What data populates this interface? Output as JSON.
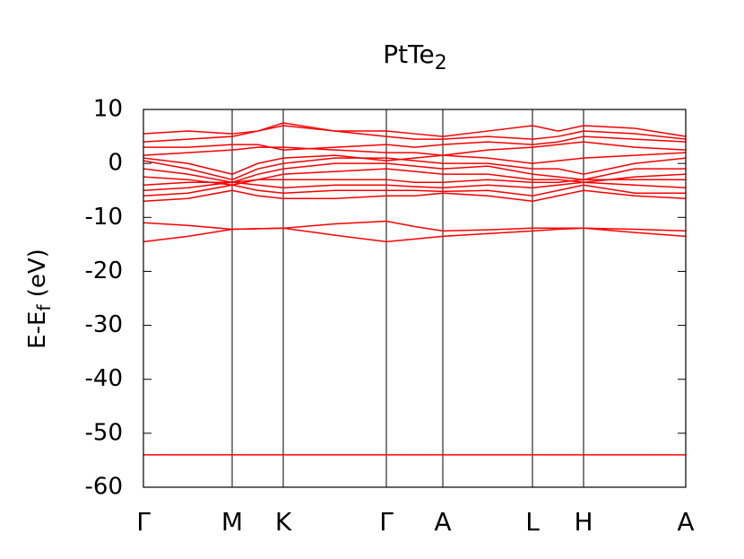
{
  "chart_data": {
    "type": "line",
    "title": [
      "PtTe",
      "2"
    ],
    "ylabel": [
      "E-E",
      "f",
      " (eV)"
    ],
    "xlim": [
      0,
      6.05
    ],
    "xticks": [
      {
        "value": 0,
        "label": "Γ"
      },
      {
        "value": 0.99,
        "label": "M"
      },
      {
        "value": 1.56,
        "label": "K"
      },
      {
        "value": 2.71,
        "label": "Γ"
      },
      {
        "value": 3.34,
        "label": "A"
      },
      {
        "value": 4.34,
        "label": "L"
      },
      {
        "value": 4.91,
        "label": "H"
      },
      {
        "value": 6.05,
        "label": "A"
      }
    ],
    "ylim": [
      -60,
      10
    ],
    "yticks": [
      -60,
      -50,
      -40,
      -30,
      -20,
      -10,
      0,
      10
    ],
    "grid_x": true,
    "x": [
      0,
      0.495,
      0.99,
      1.275,
      1.56,
      2.135,
      2.71,
      3.025,
      3.34,
      3.84,
      4.34,
      4.625,
      4.91,
      5.48,
      6.05
    ],
    "series": [
      {
        "color": "#ff0000",
        "values": [
          -54,
          -54,
          -54,
          -54,
          -54,
          -54,
          -54,
          -54,
          -54,
          -54,
          -54,
          -54,
          -54,
          -54,
          -54
        ]
      },
      {
        "color": "#ff0000",
        "values": [
          -14.5,
          -13.5,
          -12.2,
          -12.1,
          -12,
          -13.3,
          -14.5,
          -14,
          -13.5,
          -13,
          -12.5,
          -12.2,
          -12,
          -12.8,
          -13.5
        ]
      },
      {
        "color": "#ff0000",
        "values": [
          -11,
          -11.5,
          -12.2,
          -12.1,
          -12,
          -11.2,
          -10.7,
          -11.7,
          -12.5,
          -12.3,
          -12,
          -12,
          -12,
          -12.2,
          -12.5
        ]
      },
      {
        "color": "#ff0000",
        "values": [
          -7,
          -6.5,
          -5,
          -6,
          -6.5,
          -6.5,
          -6,
          -6,
          -5.5,
          -6,
          -7,
          -6,
          -5,
          -6,
          -6.5
        ]
      },
      {
        "color": "#ff0000",
        "values": [
          -6,
          -5.5,
          -4,
          -5,
          -5.5,
          -5,
          -5,
          -5,
          -5.2,
          -5,
          -6,
          -5,
          -4,
          -5.5,
          -5.5
        ]
      },
      {
        "color": "#ff0000",
        "values": [
          -5,
          -4.5,
          -3.5,
          -4,
          -4.5,
          -4,
          -4,
          -4.3,
          -4.5,
          -4,
          -4.5,
          -4,
          -3.5,
          -4,
          -4.5
        ]
      },
      {
        "color": "#ff0000",
        "values": [
          -4,
          -3.5,
          -3.5,
          -3,
          -3,
          -3,
          -3,
          -3.5,
          -3.5,
          -3,
          -3.5,
          -3.5,
          -3,
          -3,
          -3
        ]
      },
      {
        "color": "#ff0000",
        "values": [
          -2.5,
          -3,
          -4,
          -3,
          -2,
          -1.5,
          -1,
          -1.5,
          -2,
          -2,
          -3,
          -3,
          -3.5,
          -2.5,
          -2
        ]
      },
      {
        "color": "#ff0000",
        "values": [
          -1,
          -2,
          -3.5,
          -2,
          -1,
          0,
          0,
          -0.5,
          -1,
          -0.5,
          -2,
          -2.5,
          -3,
          -1,
          -1
        ]
      },
      {
        "color": "#ff0000",
        "values": [
          0.5,
          -1,
          -3,
          -1,
          0,
          1,
          1,
          0.5,
          0,
          0,
          -1,
          -1,
          -2,
          0,
          1
        ]
      },
      {
        "color": "#ff0000",
        "values": [
          1,
          0,
          -2,
          0,
          1,
          1.5,
          0.5,
          1,
          1.5,
          1,
          0,
          0.5,
          1,
          1.5,
          2
        ]
      },
      {
        "color": "#ff0000",
        "values": [
          1.5,
          2,
          2.5,
          3,
          3,
          2.5,
          2,
          2,
          1.5,
          2.5,
          3,
          3.5,
          4,
          3,
          2.5
        ]
      },
      {
        "color": "#ff0000",
        "values": [
          3,
          3,
          3.5,
          3.5,
          2.5,
          3,
          3.5,
          3,
          3.5,
          4,
          3.5,
          4,
          5,
          4.5,
          4
        ]
      },
      {
        "color": "#ff0000",
        "values": [
          4,
          4.5,
          5,
          6,
          7,
          6,
          5,
          4.5,
          4.5,
          5,
          4.5,
          5,
          6,
          5.5,
          4.5
        ]
      },
      {
        "color": "#ff0000",
        "values": [
          5.5,
          6,
          5.5,
          6,
          7.5,
          6,
          6,
          5.5,
          5,
          6,
          7,
          6,
          7,
          6.5,
          5
        ]
      }
    ]
  }
}
